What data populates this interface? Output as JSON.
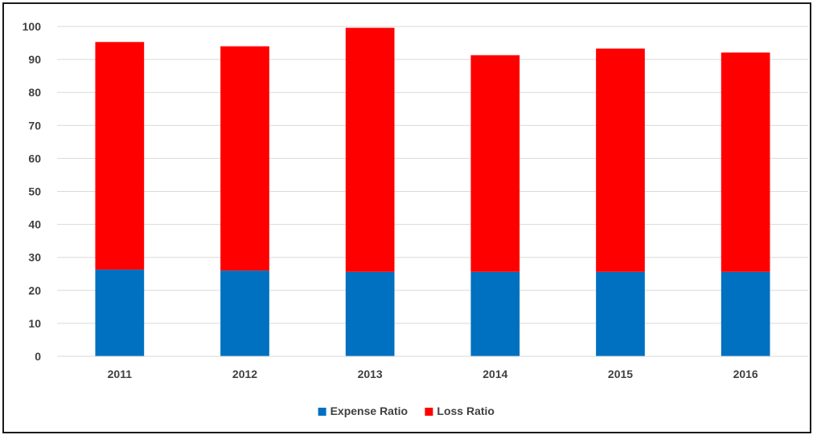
{
  "chart_data": {
    "type": "bar",
    "stacked": true,
    "title": "",
    "xlabel": "",
    "ylabel": "",
    "categories": [
      "2011",
      "2012",
      "2013",
      "2014",
      "2015",
      "2016"
    ],
    "series": [
      {
        "name": "Expense Ratio",
        "color": "#0070C0",
        "values": [
          26.3,
          26.0,
          25.6,
          25.6,
          25.6,
          25.6
        ]
      },
      {
        "name": "Loss Ratio",
        "color": "#FF0000",
        "values": [
          69.0,
          68.0,
          74.0,
          65.7,
          67.7,
          66.5
        ]
      }
    ],
    "ylim": [
      0,
      100
    ],
    "yticks": [
      0,
      10,
      20,
      30,
      40,
      50,
      60,
      70,
      80,
      90,
      100
    ],
    "grid": true,
    "legend": "bottom"
  }
}
